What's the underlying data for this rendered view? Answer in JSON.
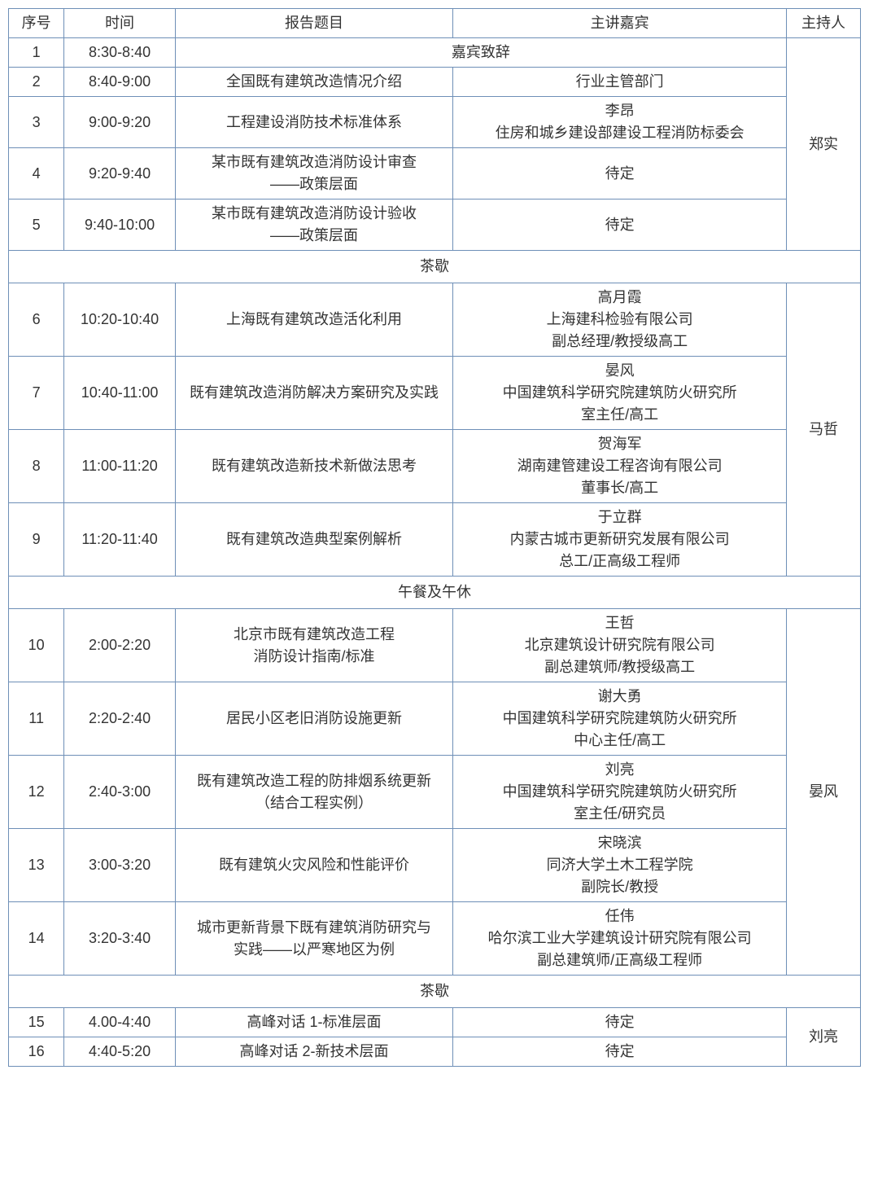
{
  "colors": {
    "border": "#6e8fb7",
    "text": "#333333",
    "background": "#ffffff"
  },
  "typography": {
    "font_family": "Microsoft YaHei",
    "font_size_pt": 14
  },
  "headers": {
    "seq": "序号",
    "time": "时间",
    "topic": "报告题目",
    "speaker": "主讲嘉宾",
    "host": "主持人"
  },
  "hosts": {
    "h1": "郑实",
    "h2": "马哲",
    "h3": "晏风",
    "h4": "刘亮"
  },
  "breaks": {
    "tea1": "茶歇",
    "lunch": "午餐及午休",
    "tea2": "茶歇"
  },
  "rows": {
    "r1": {
      "seq": "1",
      "time": "8:30-8:40",
      "merged": "嘉宾致辞"
    },
    "r2": {
      "seq": "2",
      "time": "8:40-9:00",
      "topic": "全国既有建筑改造情况介绍",
      "speaker": "行业主管部门"
    },
    "r3": {
      "seq": "3",
      "time": "9:00-9:20",
      "topic": "工程建设消防技术标准体系",
      "speaker_l1": "李昂",
      "speaker_l2": "住房和城乡建设部建设工程消防标委会"
    },
    "r4": {
      "seq": "4",
      "time": "9:20-9:40",
      "topic_l1": "某市既有建筑改造消防设计审查",
      "topic_l2": "——政策层面",
      "speaker": "待定"
    },
    "r5": {
      "seq": "5",
      "time": "9:40-10:00",
      "topic_l1": "某市既有建筑改造消防设计验收",
      "topic_l2": "——政策层面",
      "speaker": "待定"
    },
    "r6": {
      "seq": "6",
      "time": "10:20-10:40",
      "topic": "上海既有建筑改造活化利用",
      "speaker_l1": "高月霞",
      "speaker_l2": "上海建科检验有限公司",
      "speaker_l3": "副总经理/教授级高工"
    },
    "r7": {
      "seq": "7",
      "time": "10:40-11:00",
      "topic": "既有建筑改造消防解决方案研究及实践",
      "speaker_l1": "晏风",
      "speaker_l2": "中国建筑科学研究院建筑防火研究所",
      "speaker_l3": "室主任/高工"
    },
    "r8": {
      "seq": "8",
      "time": "11:00-11:20",
      "topic": "既有建筑改造新技术新做法思考",
      "speaker_l1": "贺海军",
      "speaker_l2": "湖南建管建设工程咨询有限公司",
      "speaker_l3": "董事长/高工"
    },
    "r9": {
      "seq": "9",
      "time": "11:20-11:40",
      "topic": "既有建筑改造典型案例解析",
      "speaker_l1": "于立群",
      "speaker_l2": "内蒙古城市更新研究发展有限公司",
      "speaker_l3": "总工/正高级工程师"
    },
    "r10": {
      "seq": "10",
      "time": "2:00-2:20",
      "topic_l1": "北京市既有建筑改造工程",
      "topic_l2": "消防设计指南/标准",
      "speaker_l1": "王哲",
      "speaker_l2": "北京建筑设计研究院有限公司",
      "speaker_l3": "副总建筑师/教授级高工"
    },
    "r11": {
      "seq": "11",
      "time": "2:20-2:40",
      "topic": "居民小区老旧消防设施更新",
      "speaker_l1": "谢大勇",
      "speaker_l2": "中国建筑科学研究院建筑防火研究所",
      "speaker_l3": "中心主任/高工"
    },
    "r12": {
      "seq": "12",
      "time": "2:40-3:00",
      "topic_l1": "既有建筑改造工程的防排烟系统更新",
      "topic_l2": "（结合工程实例）",
      "speaker_l1": "刘亮",
      "speaker_l2": "中国建筑科学研究院建筑防火研究所",
      "speaker_l3": "室主任/研究员"
    },
    "r13": {
      "seq": "13",
      "time": "3:00-3:20",
      "topic": "既有建筑火灾风险和性能评价",
      "speaker_l1": "宋晓滨",
      "speaker_l2": "同济大学土木工程学院",
      "speaker_l3": "副院长/教授"
    },
    "r14": {
      "seq": "14",
      "time": "3:20-3:40",
      "topic_l1": "城市更新背景下既有建筑消防研究与",
      "topic_l2": "实践——以严寒地区为例",
      "speaker_l1": "任伟",
      "speaker_l2": "哈尔滨工业大学建筑设计研究院有限公司",
      "speaker_l3": "副总建筑师/正高级工程师"
    },
    "r15": {
      "seq": "15",
      "time": "4.00-4:40",
      "topic": "高峰对话 1-标准层面",
      "speaker": "待定"
    },
    "r16": {
      "seq": "16",
      "time": "4:40-5:20",
      "topic": "高峰对话 2-新技术层面",
      "speaker": "待定"
    }
  }
}
